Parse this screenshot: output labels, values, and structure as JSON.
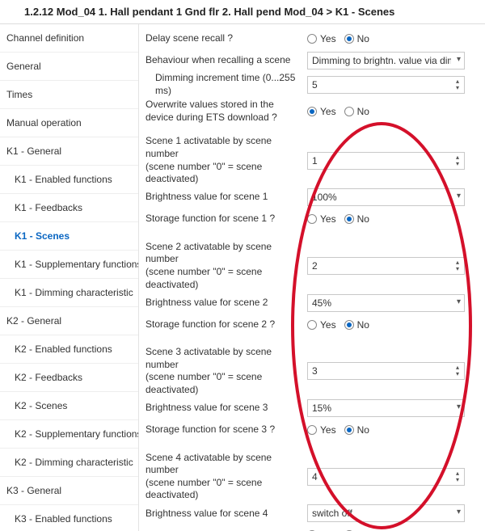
{
  "header": {
    "breadcrumb_prefix": "1.2.12 Mod_04 1. Hall pendant 1 Gnd flr 2. Hall pend Mod_04 > ",
    "breadcrumb_current": "K1 - Scenes"
  },
  "sidebar": {
    "items": [
      {
        "label": "Channel definition",
        "sub": false
      },
      {
        "label": "General",
        "sub": false
      },
      {
        "label": "Times",
        "sub": false
      },
      {
        "label": "Manual operation",
        "sub": false
      },
      {
        "label": "K1 - General",
        "sub": false
      },
      {
        "label": "K1 - Enabled functions",
        "sub": true
      },
      {
        "label": "K1 - Feedbacks",
        "sub": true
      },
      {
        "label": "K1 - Scenes",
        "sub": true,
        "active": true
      },
      {
        "label": "K1 - Supplementary functions",
        "sub": true
      },
      {
        "label": "K1 - Dimming characteristic",
        "sub": true
      },
      {
        "label": "K2 - General",
        "sub": false
      },
      {
        "label": "K2 - Enabled functions",
        "sub": true
      },
      {
        "label": "K2 - Feedbacks",
        "sub": true
      },
      {
        "label": "K2 - Scenes",
        "sub": true
      },
      {
        "label": "K2 - Supplementary functions",
        "sub": true
      },
      {
        "label": "K2 - Dimming characteristic",
        "sub": true
      },
      {
        "label": "K3 - General",
        "sub": false
      },
      {
        "label": "K3 - Enabled functions",
        "sub": true
      }
    ]
  },
  "labels": {
    "yes": "Yes",
    "no": "No",
    "delay_recall": "Delay scene recall ?",
    "behaviour": "Behaviour when recalling a scene",
    "dim_time": "Dimming increment time (0...255 ms)",
    "overwrite": "Overwrite values stored in the device during ETS download ?",
    "behaviour_value": "Dimming to brightn. value via dimming increm. t.",
    "dim_time_value": "5",
    "scene_act_a": "activatable by scene number",
    "scene_act_b": "(scene number \"0\" = scene deactivated)",
    "bright_prefix": "Brightness value for scene",
    "storage_prefix": "Storage function for scene",
    "storage_suffix": " ?"
  },
  "scenes": [
    {
      "n": "1",
      "num": "1",
      "bright": "100%"
    },
    {
      "n": "2",
      "num": "2",
      "bright": "45%"
    },
    {
      "n": "3",
      "num": "3",
      "bright": "15%"
    },
    {
      "n": "4",
      "num": "4",
      "bright": "switch off"
    }
  ],
  "overlay": {
    "stroke": "#d4102a",
    "stroke_width": 4
  }
}
